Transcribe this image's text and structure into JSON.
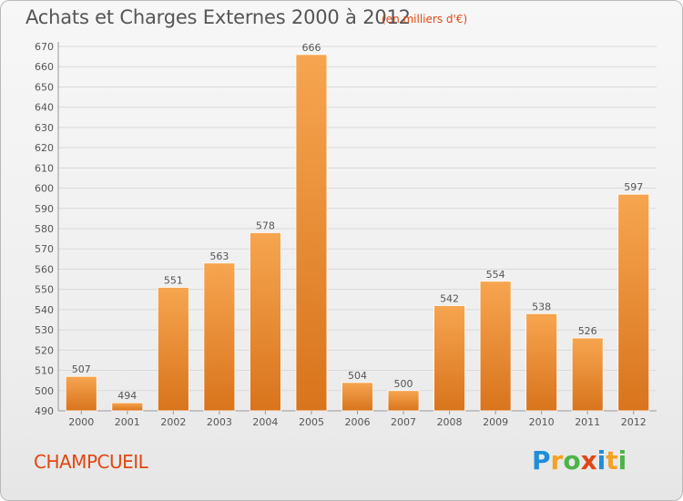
{
  "chart_data": {
    "type": "bar",
    "title": "Achats et Charges Externes 2000 à 2012",
    "unit": "(en milliers d'€)",
    "categories": [
      "2000",
      "2001",
      "2002",
      "2003",
      "2004",
      "2005",
      "2006",
      "2007",
      "2008",
      "2009",
      "2010",
      "2011",
      "2012"
    ],
    "values": [
      507,
      494,
      551,
      563,
      578,
      666,
      504,
      500,
      542,
      554,
      538,
      526,
      597
    ],
    "ylim": [
      490,
      670
    ],
    "ytick_step": 10,
    "grid": true,
    "bar_color_top": "#f7a550",
    "bar_color_bottom": "#d8741c"
  },
  "commune": "CHAMPCUEIL",
  "brand": {
    "letters": [
      "P",
      "r",
      "o",
      "x",
      "i",
      "t",
      "i"
    ],
    "colors": [
      "#1f8ed9",
      "#f2a324",
      "#4cb447",
      "#e24612",
      "#1f8ed9",
      "#f2a324",
      "#4cb447"
    ]
  }
}
